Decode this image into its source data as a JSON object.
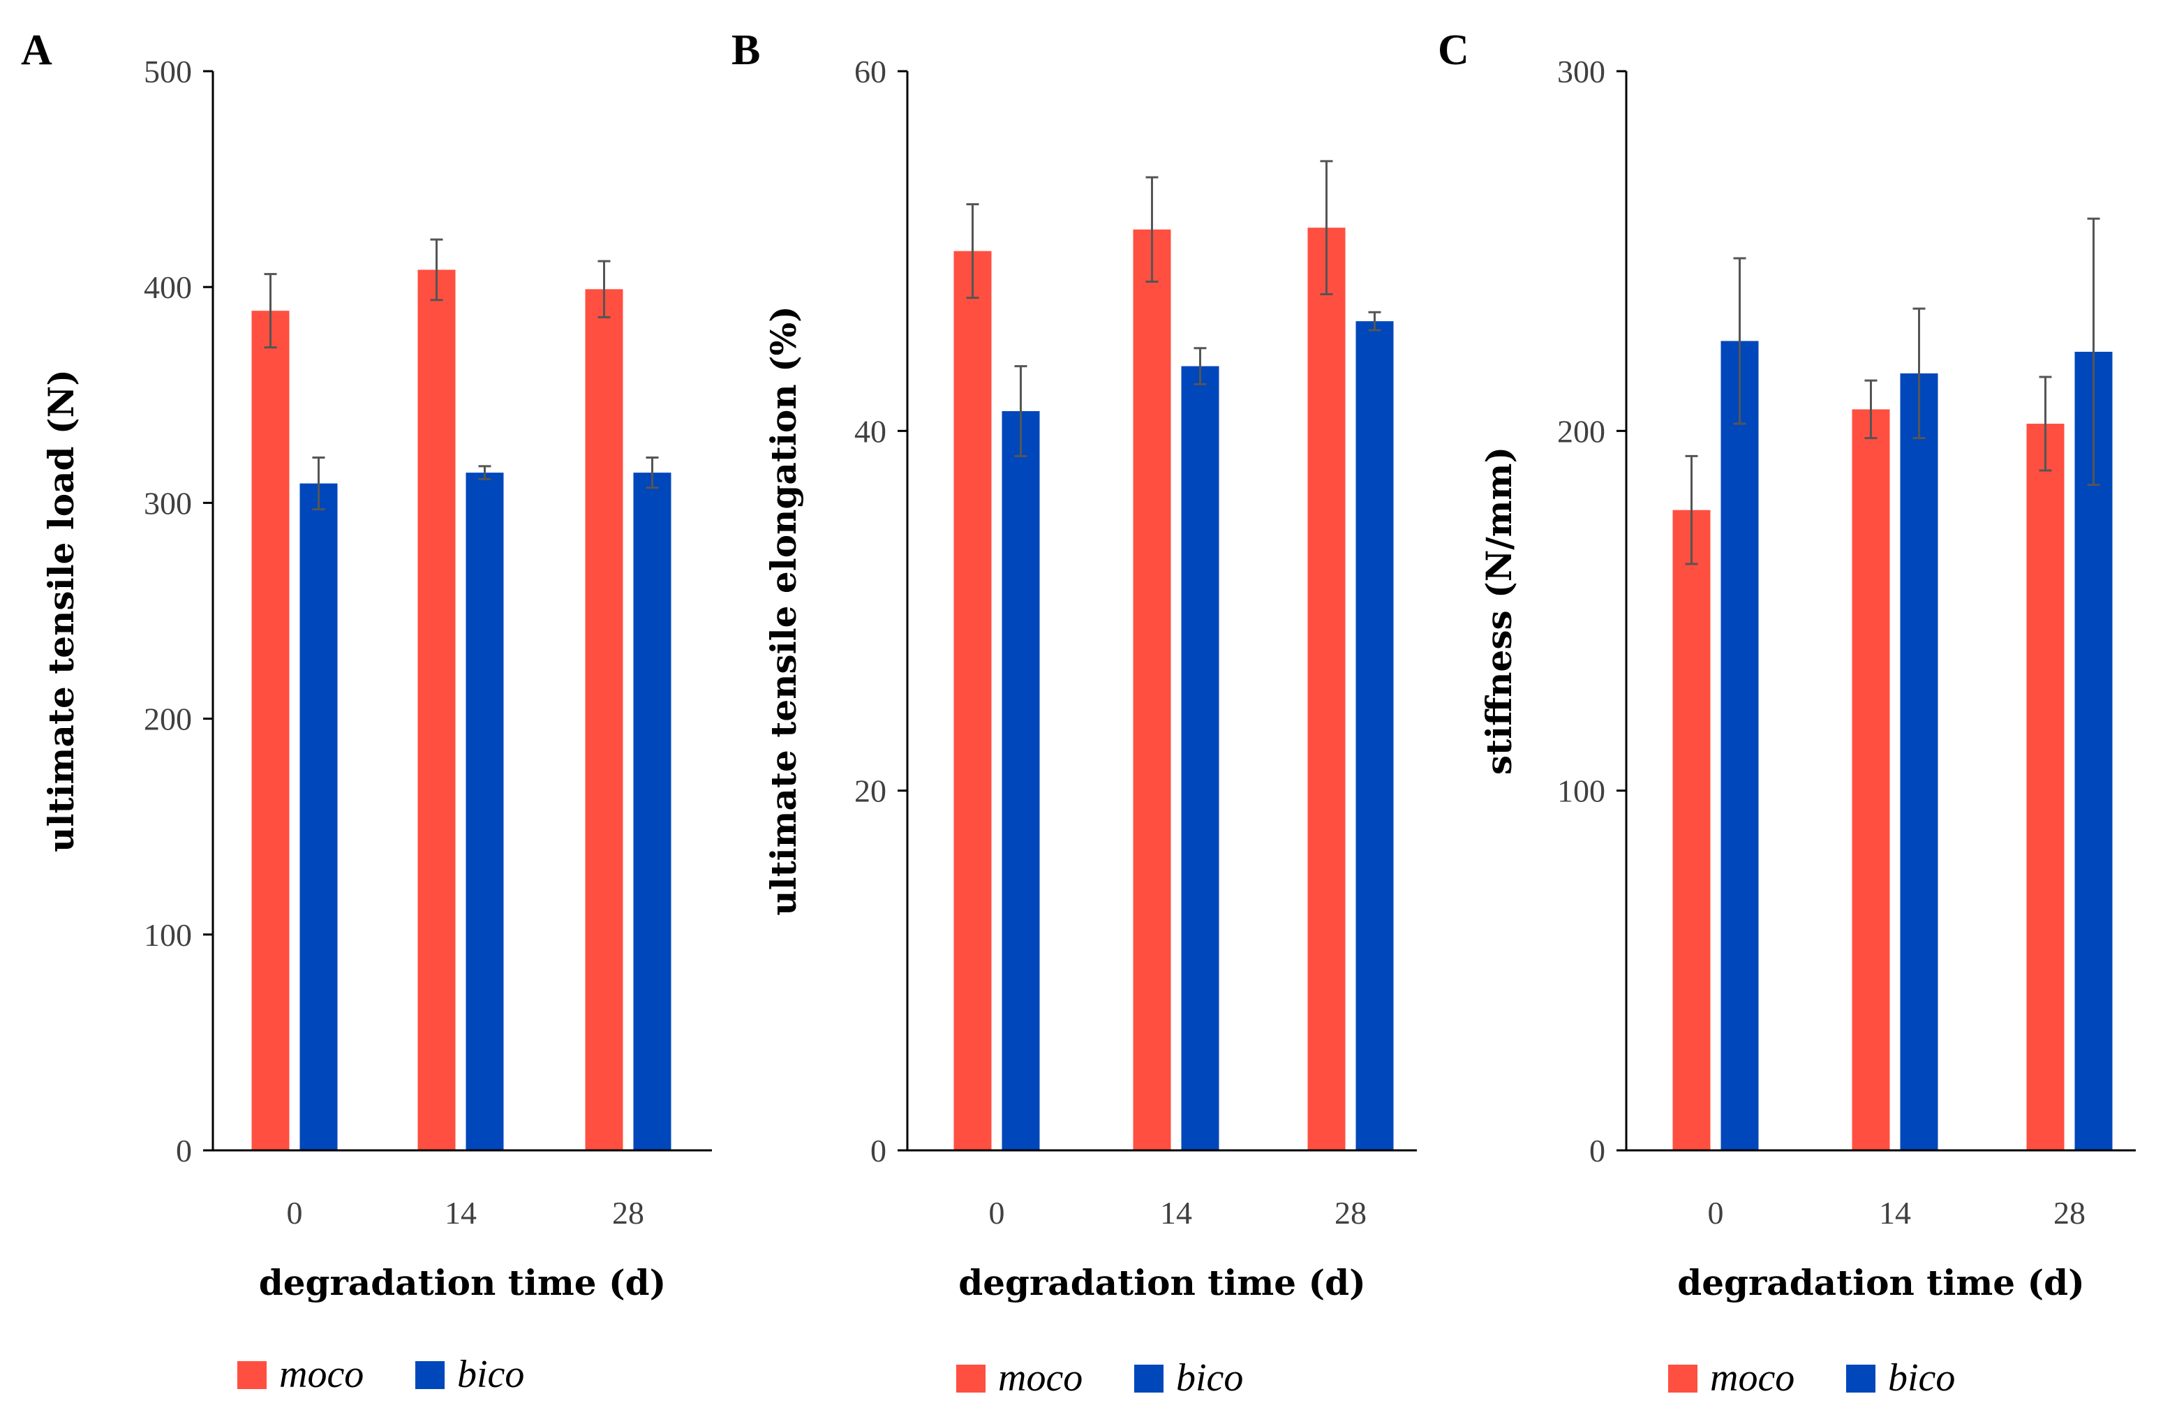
{
  "colors": {
    "moco": "#ff4f40",
    "bico": "#0047bb",
    "axis": "#000000",
    "error_bar": "#555555"
  },
  "chart_data": [
    {
      "panel_label": "A",
      "type": "bar",
      "title": "",
      "xlabel": "degradation time (d)",
      "ylabel": "ultimate tensile load (N)",
      "categories": [
        "0",
        "14",
        "28"
      ],
      "ylim": [
        0,
        500
      ],
      "yticks": [
        "0",
        "100",
        "200",
        "300",
        "400",
        "500"
      ],
      "grid": false,
      "legend_position": "bottom",
      "series": [
        {
          "name": "moco",
          "values": [
            389,
            408,
            399
          ],
          "errors": [
            17,
            14,
            13
          ]
        },
        {
          "name": "bico",
          "values": [
            309,
            314,
            314
          ],
          "errors": [
            12,
            3,
            7
          ]
        }
      ]
    },
    {
      "panel_label": "B",
      "type": "bar",
      "title": "",
      "xlabel": "degradation time (d)",
      "ylabel": "ultimate tensile elongation (%)",
      "categories": [
        "0",
        "14",
        "28"
      ],
      "ylim": [
        0,
        60
      ],
      "yticks": [
        "0",
        "20",
        "40",
        "60"
      ],
      "grid": false,
      "legend_position": "bottom",
      "series": [
        {
          "name": "moco",
          "values": [
            50.0,
            51.2,
            51.3
          ],
          "errors": [
            2.6,
            2.9,
            3.7
          ]
        },
        {
          "name": "bico",
          "values": [
            41.1,
            43.6,
            46.1
          ],
          "errors": [
            2.5,
            1.0,
            0.5
          ]
        }
      ]
    },
    {
      "panel_label": "C",
      "type": "bar",
      "title": "",
      "xlabel": "degradation time (d)",
      "ylabel": "stiffness (N/mm)",
      "categories": [
        "0",
        "14",
        "28"
      ],
      "ylim": [
        0,
        300
      ],
      "yticks": [
        "0",
        "100",
        "200",
        "300"
      ],
      "grid": false,
      "legend_position": "bottom",
      "series": [
        {
          "name": "moco",
          "values": [
            178,
            206,
            202
          ],
          "errors": [
            15,
            8,
            13
          ]
        },
        {
          "name": "bico",
          "values": [
            225,
            216,
            222
          ],
          "errors": [
            23,
            18,
            37
          ]
        }
      ]
    }
  ]
}
